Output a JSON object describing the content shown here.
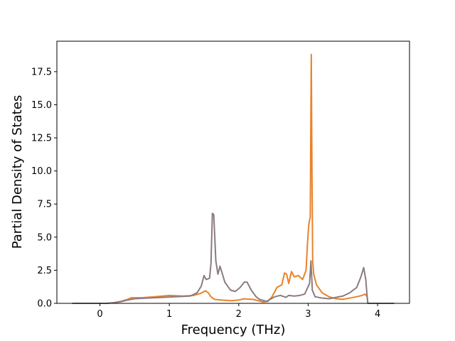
{
  "chart_data": {
    "type": "line",
    "title": "",
    "xlabel": "Frequency (THz)",
    "ylabel": "Partial Density of States",
    "xlim": [
      -0.62,
      4.46
    ],
    "ylim": [
      0,
      19.8
    ],
    "grid": false,
    "legend": "none",
    "xticks": [
      {
        "value": 0,
        "label": "0"
      },
      {
        "value": 1,
        "label": "1"
      },
      {
        "value": 2,
        "label": "2"
      },
      {
        "value": 3,
        "label": "3"
      },
      {
        "value": 4,
        "label": "4"
      }
    ],
    "yticks": [
      {
        "value": 0,
        "label": "0.0"
      },
      {
        "value": 2.5,
        "label": "2.5"
      },
      {
        "value": 5,
        "label": "5.0"
      },
      {
        "value": 7.5,
        "label": "7.5"
      },
      {
        "value": 10,
        "label": "10.0"
      },
      {
        "value": 12.5,
        "label": "12.5"
      },
      {
        "value": 15,
        "label": "15.0"
      },
      {
        "value": 17.5,
        "label": "17.5"
      }
    ],
    "series": [
      {
        "color": "#e8832a",
        "points": [
          [
            -0.4,
            0
          ],
          [
            0.1,
            0
          ],
          [
            0.2,
            0.05
          ],
          [
            0.3,
            0.15
          ],
          [
            0.4,
            0.3
          ],
          [
            0.45,
            0.42
          ],
          [
            0.6,
            0.42
          ],
          [
            0.8,
            0.5
          ],
          [
            1.0,
            0.6
          ],
          [
            1.2,
            0.55
          ],
          [
            1.35,
            0.6
          ],
          [
            1.45,
            0.75
          ],
          [
            1.52,
            0.95
          ],
          [
            1.56,
            0.8
          ],
          [
            1.6,
            0.5
          ],
          [
            1.65,
            0.3
          ],
          [
            1.75,
            0.25
          ],
          [
            1.9,
            0.2
          ],
          [
            2.0,
            0.25
          ],
          [
            2.08,
            0.35
          ],
          [
            2.12,
            0.32
          ],
          [
            2.2,
            0.3
          ],
          [
            2.28,
            0.2
          ],
          [
            2.35,
            0.1
          ],
          [
            2.42,
            0.15
          ],
          [
            2.48,
            0.5
          ],
          [
            2.52,
            0.9
          ],
          [
            2.55,
            1.2
          ],
          [
            2.62,
            1.4
          ],
          [
            2.66,
            2.3
          ],
          [
            2.69,
            2.2
          ],
          [
            2.72,
            1.5
          ],
          [
            2.76,
            2.4
          ],
          [
            2.8,
            2.0
          ],
          [
            2.86,
            2.1
          ],
          [
            2.92,
            1.8
          ],
          [
            2.97,
            2.5
          ],
          [
            2.99,
            4.5
          ],
          [
            3.01,
            6.0
          ],
          [
            3.03,
            6.5
          ],
          [
            3.045,
            18.8
          ],
          [
            3.055,
            10.0
          ],
          [
            3.065,
            3.2
          ],
          [
            3.08,
            2.2
          ],
          [
            3.12,
            1.4
          ],
          [
            3.2,
            0.8
          ],
          [
            3.3,
            0.5
          ],
          [
            3.4,
            0.35
          ],
          [
            3.5,
            0.3
          ],
          [
            3.6,
            0.4
          ],
          [
            3.7,
            0.5
          ],
          [
            3.78,
            0.6
          ],
          [
            3.82,
            0.7
          ],
          [
            3.85,
            0.5
          ],
          [
            3.86,
            0
          ],
          [
            4.24,
            0
          ]
        ]
      },
      {
        "color": "#8c7b80",
        "points": [
          [
            -0.4,
            0
          ],
          [
            0.1,
            0
          ],
          [
            0.2,
            0.05
          ],
          [
            0.3,
            0.12
          ],
          [
            0.4,
            0.25
          ],
          [
            0.5,
            0.35
          ],
          [
            0.7,
            0.4
          ],
          [
            0.9,
            0.45
          ],
          [
            1.1,
            0.5
          ],
          [
            1.3,
            0.55
          ],
          [
            1.4,
            0.8
          ],
          [
            1.46,
            1.3
          ],
          [
            1.5,
            2.1
          ],
          [
            1.53,
            1.8
          ],
          [
            1.58,
            1.9
          ],
          [
            1.6,
            3.0
          ],
          [
            1.62,
            6.8
          ],
          [
            1.64,
            6.7
          ],
          [
            1.67,
            3.2
          ],
          [
            1.7,
            2.2
          ],
          [
            1.73,
            2.8
          ],
          [
            1.76,
            2.3
          ],
          [
            1.8,
            1.6
          ],
          [
            1.88,
            1.0
          ],
          [
            1.95,
            0.9
          ],
          [
            2.02,
            1.2
          ],
          [
            2.08,
            1.6
          ],
          [
            2.12,
            1.6
          ],
          [
            2.18,
            1.0
          ],
          [
            2.25,
            0.5
          ],
          [
            2.3,
            0.3
          ],
          [
            2.4,
            0.15
          ],
          [
            2.45,
            0.3
          ],
          [
            2.52,
            0.5
          ],
          [
            2.6,
            0.6
          ],
          [
            2.68,
            0.45
          ],
          [
            2.72,
            0.6
          ],
          [
            2.8,
            0.55
          ],
          [
            2.88,
            0.6
          ],
          [
            2.95,
            0.7
          ],
          [
            3.02,
            1.5
          ],
          [
            3.04,
            3.2
          ],
          [
            3.06,
            1.0
          ],
          [
            3.1,
            0.5
          ],
          [
            3.2,
            0.4
          ],
          [
            3.3,
            0.35
          ],
          [
            3.4,
            0.45
          ],
          [
            3.5,
            0.55
          ],
          [
            3.6,
            0.8
          ],
          [
            3.7,
            1.2
          ],
          [
            3.76,
            2.0
          ],
          [
            3.8,
            2.7
          ],
          [
            3.83,
            1.8
          ],
          [
            3.85,
            0.5
          ],
          [
            3.86,
            0
          ],
          [
            4.24,
            0
          ]
        ]
      }
    ]
  }
}
